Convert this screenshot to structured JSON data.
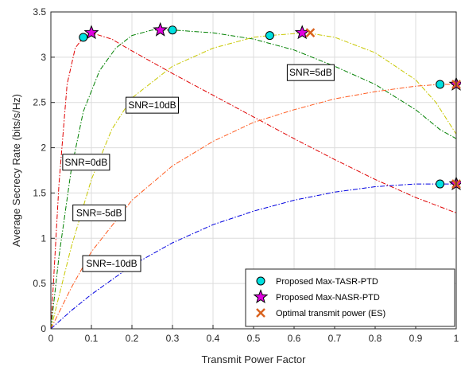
{
  "chart_data": {
    "type": "line",
    "xlabel": "Transmit Power Factor",
    "ylabel": "Average Secrecy Rate (bits/s/Hz)",
    "xlim": [
      0,
      1
    ],
    "ylim": [
      0,
      3.5
    ],
    "xticks": [
      "0",
      "0.1",
      "0.2",
      "0.3",
      "0.4",
      "0.5",
      "0.6",
      "0.7",
      "0.8",
      "0.9",
      "1"
    ],
    "yticks": [
      "0",
      "0.5",
      "1",
      "1.5",
      "2",
      "2.5",
      "3",
      "3.5"
    ],
    "grid": true,
    "legend_position": "bottom-right",
    "series": [
      {
        "label": "SNR=10dB",
        "color": "#e00000",
        "x": [
          0,
          0.02,
          0.04,
          0.06,
          0.08,
          0.1,
          0.15,
          0.2,
          0.3,
          0.4,
          0.5,
          0.6,
          0.7,
          0.8,
          0.9,
          1.0
        ],
        "y": [
          0,
          1.6,
          2.7,
          3.1,
          3.22,
          3.27,
          3.2,
          3.07,
          2.82,
          2.58,
          2.34,
          2.1,
          1.87,
          1.65,
          1.45,
          1.28
        ]
      },
      {
        "label": "SNR=5dB",
        "color": "#008000",
        "x": [
          0,
          0.02,
          0.05,
          0.08,
          0.12,
          0.16,
          0.2,
          0.25,
          0.3,
          0.4,
          0.5,
          0.6,
          0.7,
          0.8,
          0.9,
          0.96,
          1.0
        ],
        "y": [
          0,
          0.8,
          1.75,
          2.4,
          2.85,
          3.1,
          3.24,
          3.3,
          3.3,
          3.27,
          3.2,
          3.08,
          2.9,
          2.7,
          2.42,
          2.2,
          2.1
        ]
      },
      {
        "label": "SNR=0dB",
        "color": "#c8c800",
        "x": [
          0,
          0.05,
          0.1,
          0.15,
          0.2,
          0.3,
          0.4,
          0.5,
          0.54,
          0.6,
          0.63,
          0.7,
          0.8,
          0.9,
          0.95,
          1.0
        ],
        "y": [
          0,
          0.9,
          1.65,
          2.2,
          2.55,
          2.9,
          3.1,
          3.22,
          3.24,
          3.26,
          3.27,
          3.22,
          3.05,
          2.75,
          2.5,
          2.15
        ]
      },
      {
        "label": "SNR=-5dB",
        "color": "#ff5a1e",
        "x": [
          0,
          0.05,
          0.1,
          0.2,
          0.3,
          0.4,
          0.5,
          0.6,
          0.7,
          0.8,
          0.9,
          0.96,
          1.0
        ],
        "y": [
          0,
          0.45,
          0.85,
          1.42,
          1.8,
          2.07,
          2.28,
          2.42,
          2.54,
          2.62,
          2.68,
          2.7,
          2.7
        ]
      },
      {
        "label": "SNR=-10dB",
        "color": "#0000e0",
        "x": [
          0,
          0.05,
          0.1,
          0.2,
          0.3,
          0.4,
          0.5,
          0.6,
          0.7,
          0.8,
          0.9,
          0.96,
          1.0
        ],
        "y": [
          0,
          0.2,
          0.38,
          0.7,
          0.95,
          1.15,
          1.3,
          1.42,
          1.51,
          1.57,
          1.6,
          1.6,
          1.6
        ]
      }
    ],
    "markers": {
      "tasr": {
        "legend": "Proposed Max-TASR-PTD",
        "color": "#00e0e0",
        "points": [
          [
            0.08,
            3.22
          ],
          [
            0.3,
            3.3
          ],
          [
            0.54,
            3.24
          ],
          [
            0.96,
            2.7
          ],
          [
            0.96,
            1.6
          ]
        ]
      },
      "nasr": {
        "legend": "Proposed Max-NASR-PTD",
        "color": "#e000e0",
        "points": [
          [
            0.1,
            3.27
          ],
          [
            0.27,
            3.3
          ],
          [
            0.62,
            3.27
          ],
          [
            1.0,
            2.7
          ],
          [
            1.0,
            1.6
          ]
        ]
      },
      "optimal": {
        "legend": "Optimal transmit power (ES)",
        "color": "#d9621e",
        "points": [
          [
            0.64,
            3.27
          ],
          [
            1.0,
            2.7
          ],
          [
            1.0,
            1.6
          ]
        ]
      }
    },
    "annotations": [
      {
        "text": "SNR=5dB",
        "x": 0.641,
        "y": 2.83
      },
      {
        "text": "SNR=10dB",
        "x": 0.25,
        "y": 2.47
      },
      {
        "text": "SNR=0dB",
        "x": 0.087,
        "y": 1.84
      },
      {
        "text": "SNR=-5dB",
        "x": 0.119,
        "y": 1.28
      },
      {
        "text": "SNR=-10dB",
        "x": 0.15,
        "y": 0.72
      }
    ]
  }
}
